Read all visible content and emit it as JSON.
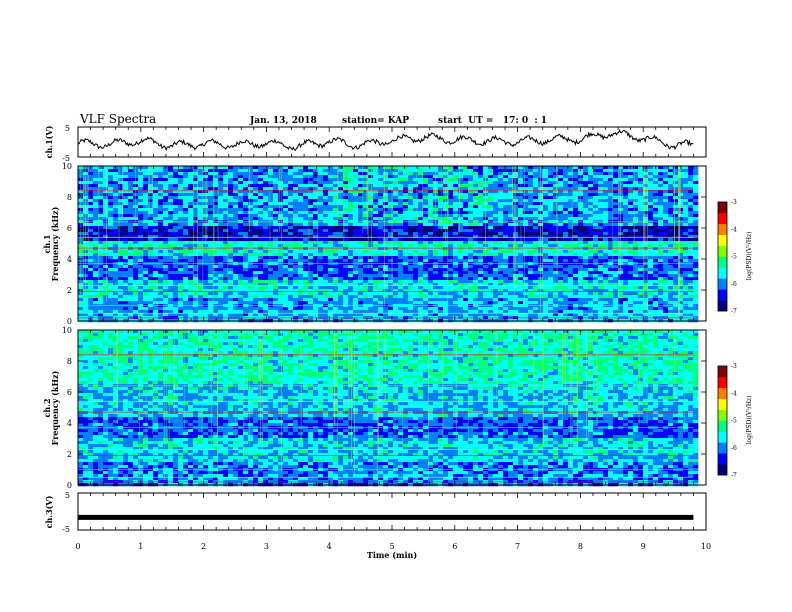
{
  "header": {
    "title": "VLF Spectra",
    "date": "Jan. 13, 2018",
    "station": "station= KAP",
    "start": "start  UT =   17: 0  : 1"
  },
  "chart_data": [
    {
      "type": "line",
      "panel": "ch1-waveform",
      "ylabel": "ch.1(V)",
      "ylim": [
        -5,
        5
      ],
      "yticks": [
        "5",
        "-5"
      ],
      "x": [
        0.0,
        0.5,
        1.0,
        1.5,
        2.0,
        2.5,
        3.0,
        3.5,
        4.0,
        4.5,
        5.0,
        5.5,
        6.0,
        6.5,
        7.0,
        7.5,
        8.0,
        8.5,
        9.0,
        9.5,
        9.8
      ],
      "values": [
        -0.5,
        -0.8,
        0.5,
        -1.2,
        -0.6,
        -0.9,
        -0.4,
        -1.5,
        0.2,
        -1.0,
        0.5,
        1.5,
        0.8,
        0.4,
        0.1,
        0.8,
        1.0,
        3.0,
        1.3,
        -1.0,
        -1.2
      ]
    },
    {
      "type": "heatmap",
      "panel": "ch1-spectrogram",
      "ylabel": "ch.1",
      "ylabel2": "Frequency  (kHz)",
      "ylim": [
        0,
        10
      ],
      "yticks": [
        "0",
        "2",
        "4",
        "6",
        "8",
        "10"
      ],
      "colorbar": {
        "label": "log(PSD)(V²/Hz)",
        "range": [
          -7,
          -3
        ],
        "ticks": [
          "-3",
          "-4",
          "-5",
          "-6",
          "-7"
        ]
      }
    },
    {
      "type": "heatmap",
      "panel": "ch2-spectrogram",
      "ylabel": "ch.2",
      "ylabel2": "Frequency  (kHz)",
      "ylim": [
        0,
        10
      ],
      "yticks": [
        "0",
        "2",
        "4",
        "6",
        "8",
        "10"
      ],
      "colorbar": {
        "label": "log(PSD)(V²/Hz)",
        "range": [
          -7,
          -3
        ],
        "ticks": [
          "-3",
          "-4",
          "-5",
          "-6",
          "-7"
        ]
      }
    },
    {
      "type": "line",
      "panel": "ch3-waveform",
      "ylabel": "ch.3(V)",
      "ylim": [
        -5,
        5
      ],
      "yticks": [
        "5",
        "-5"
      ],
      "x": [
        0.0,
        9.8
      ],
      "values": [
        -1.6,
        -1.6
      ]
    }
  ],
  "xaxis": {
    "label": "Time  (min)",
    "xlim": [
      0,
      10
    ],
    "ticks": [
      "0",
      "1",
      "2",
      "3",
      "4",
      "5",
      "6",
      "7",
      "8",
      "9",
      "10"
    ]
  },
  "colors": {
    "colormap": [
      "#00007f",
      "#0000ff",
      "#0080ff",
      "#00ffff",
      "#00ff80",
      "#80ff00",
      "#ffff00",
      "#ff8000",
      "#ff0000",
      "#7f0000"
    ],
    "line": "#000000"
  }
}
